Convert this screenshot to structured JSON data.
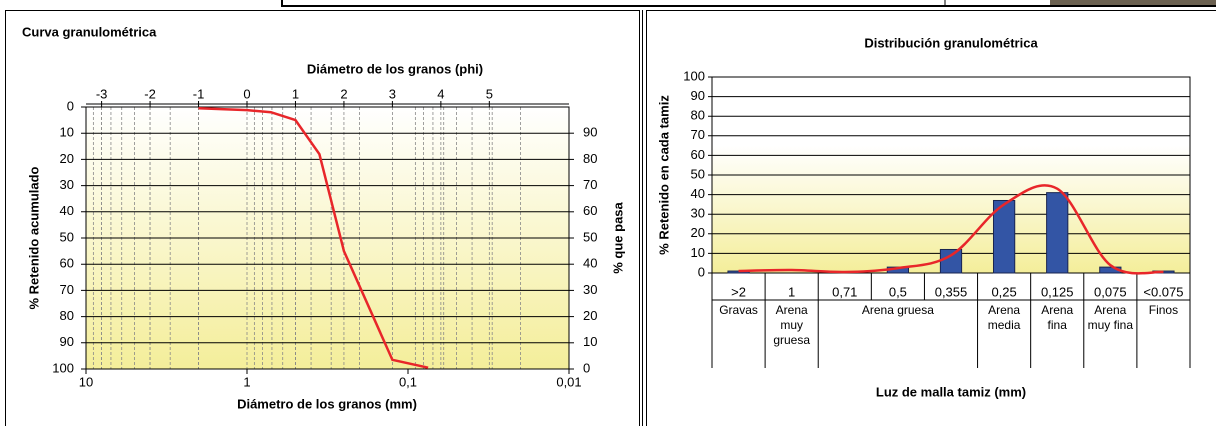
{
  "chart_data": [
    {
      "type": "line",
      "title": "Curva granulométrica",
      "x2label": "Diámetro de los granos (phi)",
      "xlabel": "Diámetro de los granos (mm)",
      "ylabel": "% Retenido acumulado",
      "y2label": "% que pasa",
      "xlog": true,
      "xlim": [
        10,
        0.01
      ],
      "xticks": [
        10,
        1,
        {
          "value": 0.1,
          "label": "0,1"
        },
        {
          "value": 0.01,
          "label": "0,01"
        }
      ],
      "x2ticks": [
        -3,
        -2,
        -1,
        0,
        1,
        2,
        3,
        4,
        5
      ],
      "ylim": [
        100,
        0
      ],
      "yticks": [
        0,
        10,
        20,
        30,
        40,
        50,
        60,
        70,
        80,
        90,
        100
      ],
      "y2lim": [
        0,
        100
      ],
      "y2ticks": [
        0,
        10,
        20,
        30,
        40,
        50,
        60,
        70,
        80,
        90
      ],
      "grid": true,
      "x": [
        2,
        1,
        0.71,
        0.5,
        0.355,
        0.25,
        0.125,
        0.075
      ],
      "series": [
        {
          "color": "#e8262a",
          "values": [
            0.5,
            1.2,
            2,
            5,
            18,
            55,
            96.5,
            99.5
          ]
        }
      ]
    },
    {
      "type": "bar",
      "title": "Distribución granulométrica",
      "xlabel": "Luz de malla tamiz (mm)",
      "ylabel": "% Retenido en cada tamiz",
      "categories": [
        ">2",
        "1",
        "0,71",
        "0,5",
        "0,355",
        "0,25",
        "0,125",
        "0,075",
        "<0.075"
      ],
      "groups": [
        {
          "name": "Gravas",
          "span": 1
        },
        {
          "name": "Arena muy gruesa",
          "span": 1
        },
        {
          "name": "Arena gruesa",
          "span": 3
        },
        {
          "name": "Arena media",
          "span": 1
        },
        {
          "name": "Arena fina",
          "span": 1
        },
        {
          "name": "Arena muy fina",
          "span": 1
        },
        {
          "name": "Finos",
          "span": 1
        }
      ],
      "ylim": [
        0,
        100
      ],
      "yticks": [
        0,
        10,
        20,
        30,
        40,
        50,
        60,
        70,
        80,
        90,
        100
      ],
      "grid": true,
      "series": [
        {
          "type": "bar",
          "color": "#3355a5",
          "values": [
            1,
            0,
            0,
            3,
            12,
            37,
            41,
            3,
            1
          ]
        },
        {
          "type": "smooth",
          "color": "#e8262a",
          "values": [
            1,
            1.5,
            0.5,
            2.5,
            9,
            35,
            43,
            4,
            0.5
          ]
        }
      ]
    }
  ]
}
